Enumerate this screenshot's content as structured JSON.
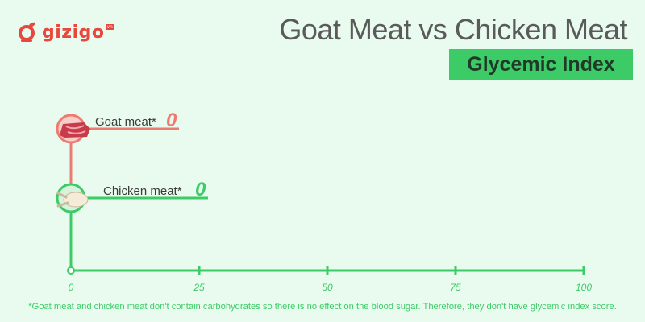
{
  "brand": {
    "name": "gizigo",
    "tag": "vn"
  },
  "header": {
    "title": "Goat Meat vs Chicken Meat",
    "subtitle": "Glycemic Index"
  },
  "chart_data": {
    "type": "bar",
    "orientation": "horizontal",
    "title": "Goat Meat vs Chicken Meat",
    "subtitle": "Glycemic Index",
    "categories": [
      "Goat meat*",
      "Chicken meat*"
    ],
    "values": [
      0,
      0
    ],
    "value_labels": [
      "0",
      "0"
    ],
    "icons": [
      "goat-meat-icon",
      "chicken-meat-icon"
    ],
    "colors": [
      "#ee7b72",
      "#3dcb67"
    ],
    "xlim": [
      0,
      100
    ],
    "x_ticks": [
      0,
      25,
      50,
      75,
      100
    ],
    "x_tick_labels": [
      "0",
      "25",
      "50",
      "75",
      "100"
    ],
    "axis_color": "#3dcb67",
    "grid": false
  },
  "footnote": "*Goat meat and chicken meat don't contain carbohydrates so there is no effect on the blood sugar. Therefore, they don't have glycemic index score."
}
